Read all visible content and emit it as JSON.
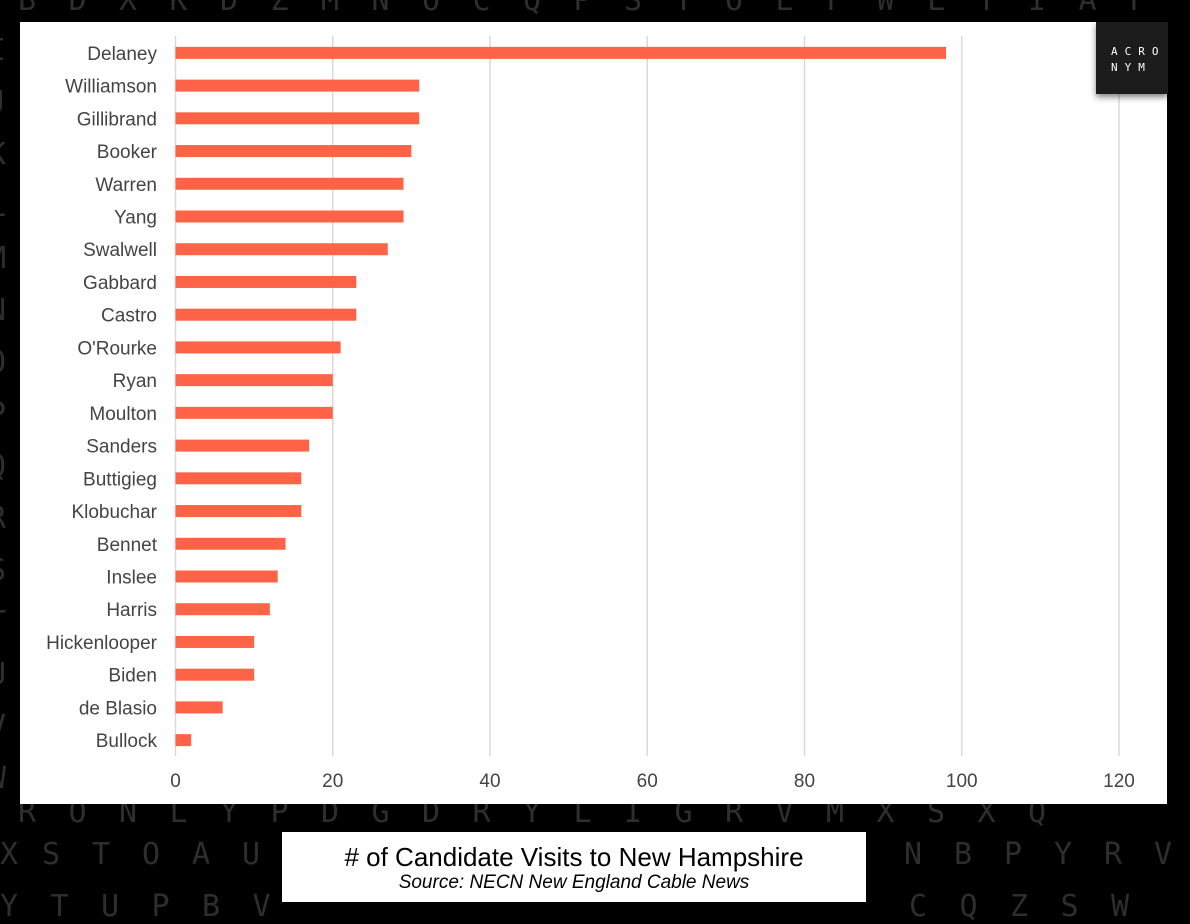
{
  "background_letters": [
    "BDXKDZMNOCQPSTOEFWLYIAF",
    "RONLYPDGDRYLIGRVMXSXQ",
    "XSTOAUNBPYRV",
    "YTUPBVRDEFTGKLMWXOCQZSW",
    "IJKLMNOPQRSTUVW"
  ],
  "logo": {
    "line1": "ACRO",
    "line2": "NYM"
  },
  "caption": {
    "title": "# of Candidate Visits to New Hampshire",
    "source": "Source: NECN New England Cable News"
  },
  "chart_data": {
    "type": "bar",
    "orientation": "horizontal",
    "categories": [
      "Delaney",
      "Williamson",
      "Gillibrand",
      "Booker",
      "Warren",
      "Yang",
      "Swalwell",
      "Gabbard",
      "Castro",
      "O'Rourke",
      "Ryan",
      "Moulton",
      "Sanders",
      "Buttigieg",
      "Klobuchar",
      "Bennet",
      "Inslee",
      "Harris",
      "Hickenlooper",
      "Biden",
      "de Blasio",
      "Bullock"
    ],
    "values": [
      98,
      31,
      31,
      30,
      29,
      29,
      27,
      23,
      23,
      21,
      20,
      20,
      17,
      16,
      16,
      14,
      13,
      12,
      10,
      10,
      6,
      2
    ],
    "xlim": [
      0,
      120
    ],
    "xticks": [
      0,
      20,
      40,
      60,
      80,
      100,
      120
    ],
    "xlabel": "",
    "ylabel": "",
    "grid": true,
    "bar_color": "#ff6347",
    "grid_color": "#d9d9d9"
  }
}
